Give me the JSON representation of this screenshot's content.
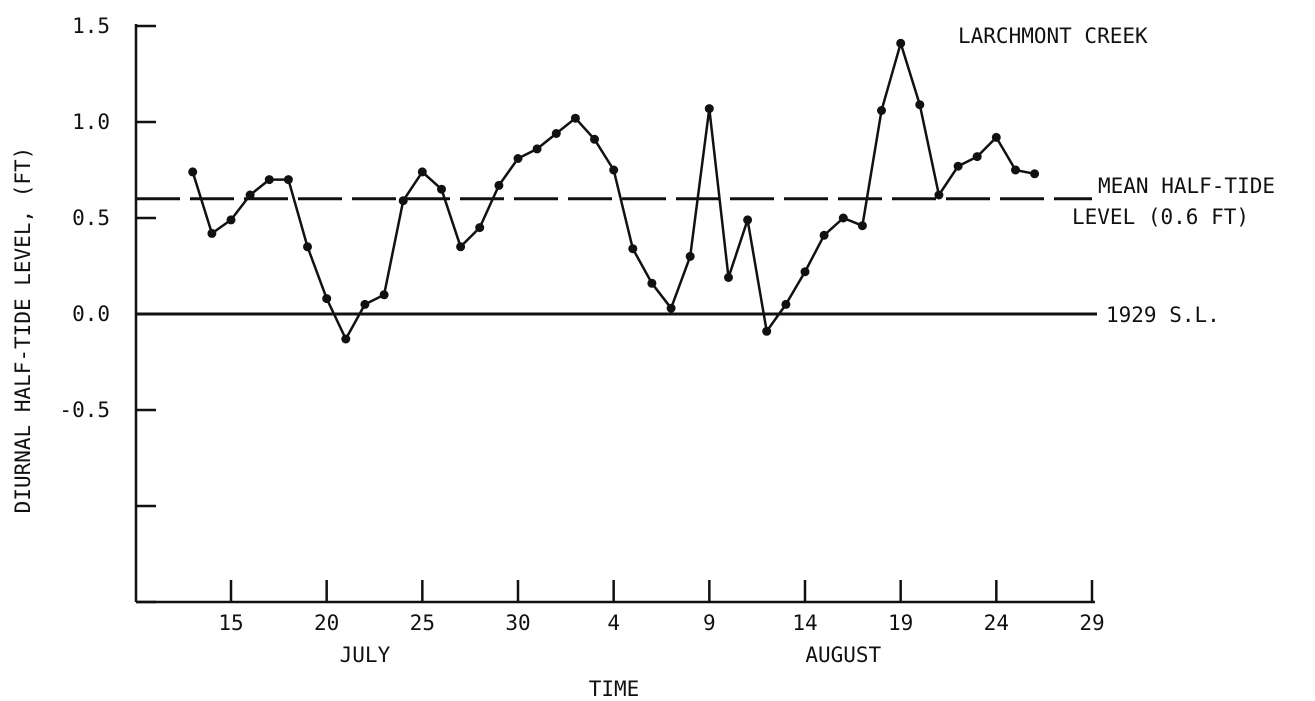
{
  "chart_data": {
    "type": "line",
    "title": "LARCHMONT CREEK",
    "xlabel": "TIME",
    "ylabel": "DIURNAL HALF-TIDE LEVEL, (FT)",
    "x_unit": "date",
    "xlim": [
      "07-10",
      "08-29"
    ],
    "ylim": [
      -1.5,
      1.5
    ],
    "grid": false,
    "y_ticks": [
      1.5,
      1.0,
      0.5,
      0.0,
      -0.5,
      -1.0,
      -1.5
    ],
    "y_tick_labels": [
      "1.5",
      "1.0",
      "0.5",
      "0.0",
      "-0.5",
      "",
      ""
    ],
    "x_ticks": [
      "07-15",
      "07-20",
      "07-25",
      "07-30",
      "08-04",
      "08-09",
      "08-14",
      "08-19",
      "08-24",
      "08-29"
    ],
    "x_tick_labels": [
      "15",
      "20",
      "25",
      "30",
      "4",
      "9",
      "14",
      "19",
      "24",
      "29"
    ],
    "month_labels": [
      {
        "label": "JULY",
        "at": "07-22"
      },
      {
        "label": "AUGUST",
        "at": "08-16"
      }
    ],
    "reference_lines": [
      {
        "label": "MEAN HALF-TIDE LEVEL (0.6 FT)",
        "label_lines": [
          "MEAN HALF-TIDE",
          "LEVEL (0.6 FT)"
        ],
        "y": 0.6,
        "style": "dashed"
      },
      {
        "label": "1929 S.L.",
        "y": 0.0,
        "style": "solid"
      }
    ],
    "series": [
      {
        "color": "#111111",
        "x": [
          "07-13",
          "07-14",
          "07-15",
          "07-16",
          "07-17",
          "07-18",
          "07-19",
          "07-20",
          "07-21",
          "07-22",
          "07-23",
          "07-24",
          "07-25",
          "07-26",
          "07-27",
          "07-28",
          "07-29",
          "07-30",
          "07-31",
          "08-01",
          "08-02",
          "08-03",
          "08-04",
          "08-05",
          "08-06",
          "08-07",
          "08-08",
          "08-09",
          "08-10",
          "08-11",
          "08-12",
          "08-13",
          "08-14",
          "08-15",
          "08-16",
          "08-17",
          "08-18",
          "08-19",
          "08-20",
          "08-21",
          "08-22",
          "08-23",
          "08-24",
          "08-25",
          "08-26"
        ],
        "y": [
          0.74,
          0.42,
          0.49,
          0.62,
          0.7,
          0.7,
          0.35,
          0.08,
          -0.13,
          0.05,
          0.1,
          0.59,
          0.74,
          0.65,
          0.35,
          0.45,
          0.67,
          0.81,
          0.86,
          0.94,
          1.02,
          0.91,
          0.75,
          0.34,
          0.16,
          0.03,
          0.3,
          1.07,
          0.19,
          0.49,
          -0.09,
          0.05,
          0.22,
          0.41,
          0.5,
          0.46,
          1.06,
          1.41,
          1.09,
          0.62,
          0.77,
          0.82,
          0.92,
          0.75,
          0.73
        ]
      }
    ]
  }
}
